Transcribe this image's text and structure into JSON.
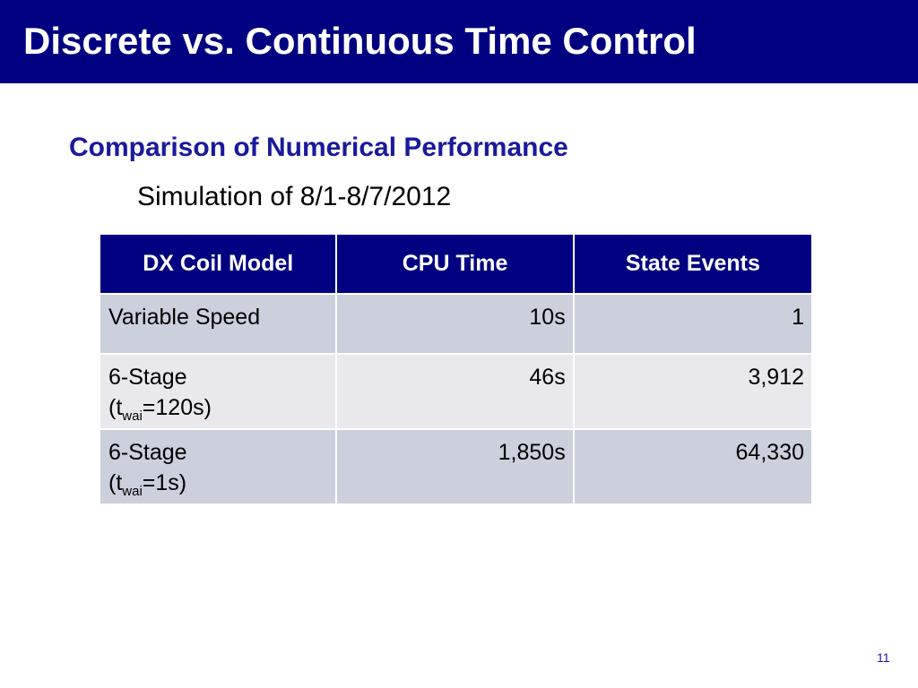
{
  "title": "Discrete vs. Continuous Time Control",
  "subtitle": "Comparison of Numerical Performance",
  "simulation_text": "Simulation of 8/1-8/7/2012",
  "table": {
    "headers": [
      "DX Coil Model",
      "CPU Time",
      "State Events"
    ],
    "rows": [
      {
        "model_line1": "Variable Speed",
        "model_line2_prefix": "",
        "model_line2_sub": "",
        "model_line2_suffix": "",
        "cpu_time": "10s",
        "state_events": "1"
      },
      {
        "model_line1": "6-Stage",
        "model_line2_prefix": "(t",
        "model_line2_sub": "wai",
        "model_line2_suffix": "=120s)",
        "cpu_time": "46s",
        "state_events": "3,912"
      },
      {
        "model_line1": "6-Stage",
        "model_line2_prefix": "(t",
        "model_line2_sub": "wai",
        "model_line2_suffix": "=1s)",
        "cpu_time": "1,850s",
        "state_events": "64,330"
      }
    ]
  },
  "page_number": "11",
  "colors": {
    "title_bar": "#000080",
    "subtitle": "#1a1a9c",
    "table_header": "#000080",
    "row_dark": "#cccfdc",
    "row_light": "#e8e8ed"
  }
}
